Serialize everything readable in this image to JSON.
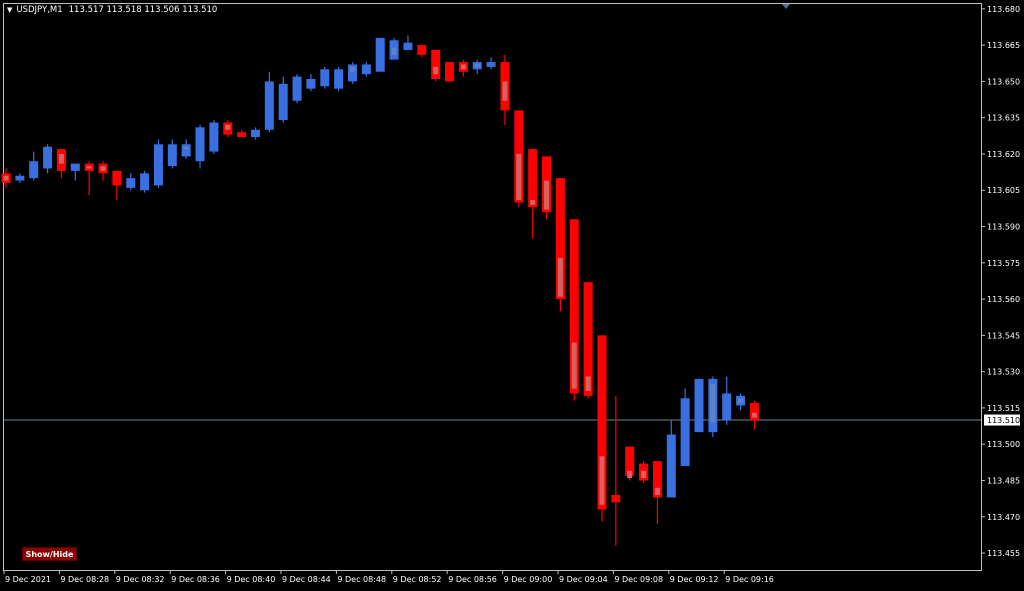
{
  "header": {
    "symbol": "USDJPY,M1",
    "ohlc": "113.517 113.518 113.506 113.510"
  },
  "buttons": {
    "show_hide": "Show/Hide"
  },
  "colors": {
    "background": "#000000",
    "bull": "#3a6fe0",
    "bear": "#ff0000",
    "bull_inner": "#5a84c8",
    "bear_inner": "#d86060",
    "axis": "#c0c0c0",
    "price_line": "#708090",
    "text": "#ffffff"
  },
  "chart_data": {
    "type": "candlestick",
    "ylim": [
      113.448,
      113.682
    ],
    "y_ticks": [
      "113.680",
      "113.665",
      "113.650",
      "113.635",
      "113.620",
      "113.605",
      "113.590",
      "113.575",
      "113.560",
      "113.545",
      "113.530",
      "113.515",
      "113.500",
      "113.485",
      "113.470",
      "113.455"
    ],
    "x_ticks": [
      "9 Dec 2021",
      "9 Dec 08:28",
      "9 Dec 08:32",
      "9 Dec 08:36",
      "9 Dec 08:40",
      "9 Dec 08:44",
      "9 Dec 08:48",
      "9 Dec 08:52",
      "9 Dec 08:56",
      "9 Dec 09:00",
      "9 Dec 09:04",
      "9 Dec 09:08",
      "9 Dec 09:12",
      "9 Dec 09:16"
    ],
    "current_price": "113.510",
    "candles": [
      {
        "o": 113.612,
        "h": 113.614,
        "l": 113.606,
        "c": 113.608,
        "io": 113.611,
        "ic": 113.609
      },
      {
        "o": 113.609,
        "h": 113.612,
        "l": 113.608,
        "c": 113.611
      },
      {
        "o": 113.61,
        "h": 113.621,
        "l": 113.609,
        "c": 113.617
      },
      {
        "o": 113.614,
        "h": 113.624,
        "l": 113.612,
        "c": 113.623
      },
      {
        "o": 113.622,
        "h": 113.622,
        "l": 113.61,
        "c": 113.613,
        "io": 113.62,
        "ic": 113.616
      },
      {
        "o": 113.613,
        "h": 113.616,
        "l": 113.609,
        "c": 113.616
      },
      {
        "o": 113.616,
        "h": 113.617,
        "l": 113.603,
        "c": 113.613,
        "io": 113.615,
        "ic": 113.614
      },
      {
        "o": 113.616,
        "h": 113.617,
        "l": 113.609,
        "c": 113.612,
        "io": 113.615,
        "ic": 113.613
      },
      {
        "o": 113.613,
        "h": 113.613,
        "l": 113.601,
        "c": 113.607
      },
      {
        "o": 113.606,
        "h": 113.612,
        "l": 113.605,
        "c": 113.61
      },
      {
        "o": 113.605,
        "h": 113.613,
        "l": 113.604,
        "c": 113.612
      },
      {
        "o": 113.607,
        "h": 113.626,
        "l": 113.606,
        "c": 113.624
      },
      {
        "o": 113.615,
        "h": 113.626,
        "l": 113.614,
        "c": 113.624
      },
      {
        "o": 113.619,
        "h": 113.626,
        "l": 113.618,
        "c": 113.624,
        "io": 113.622,
        "ic": 113.623
      },
      {
        "o": 113.617,
        "h": 113.632,
        "l": 113.614,
        "c": 113.631
      },
      {
        "o": 113.621,
        "h": 113.634,
        "l": 113.62,
        "c": 113.633
      },
      {
        "o": 113.633,
        "h": 113.634,
        "l": 113.627,
        "c": 113.628,
        "io": 113.632,
        "ic": 113.63
      },
      {
        "o": 113.629,
        "h": 113.63,
        "l": 113.627,
        "c": 113.627
      },
      {
        "o": 113.627,
        "h": 113.631,
        "l": 113.626,
        "c": 113.63
      },
      {
        "o": 113.63,
        "h": 113.654,
        "l": 113.629,
        "c": 113.65
      },
      {
        "o": 113.634,
        "h": 113.652,
        "l": 113.633,
        "c": 113.649
      },
      {
        "o": 113.642,
        "h": 113.653,
        "l": 113.641,
        "c": 113.652
      },
      {
        "o": 113.647,
        "h": 113.653,
        "l": 113.646,
        "c": 113.651
      },
      {
        "o": 113.648,
        "h": 113.656,
        "l": 113.647,
        "c": 113.655
      },
      {
        "o": 113.647,
        "h": 113.656,
        "l": 113.646,
        "c": 113.655
      },
      {
        "o": 113.65,
        "h": 113.658,
        "l": 113.649,
        "c": 113.657,
        "io": 113.654,
        "ic": 113.656
      },
      {
        "o": 113.653,
        "h": 113.658,
        "l": 113.652,
        "c": 113.657
      },
      {
        "o": 113.654,
        "h": 113.668,
        "l": 113.654,
        "c": 113.668
      },
      {
        "o": 113.659,
        "h": 113.668,
        "l": 113.659,
        "c": 113.667,
        "io": 113.661,
        "ic": 113.664
      },
      {
        "o": 113.663,
        "h": 113.669,
        "l": 113.663,
        "c": 113.666
      },
      {
        "o": 113.665,
        "h": 113.665,
        "l": 113.66,
        "c": 113.661
      },
      {
        "o": 113.663,
        "h": 113.663,
        "l": 113.65,
        "c": 113.651,
        "io": 113.656,
        "ic": 113.653
      },
      {
        "o": 113.658,
        "h": 113.658,
        "l": 113.65,
        "c": 113.65
      },
      {
        "o": 113.658,
        "h": 113.659,
        "l": 113.652,
        "c": 113.654,
        "io": 113.657,
        "ic": 113.655
      },
      {
        "o": 113.655,
        "h": 113.659,
        "l": 113.653,
        "c": 113.658,
        "io": 113.656,
        "ic": 113.657
      },
      {
        "o": 113.656,
        "h": 113.66,
        "l": 113.655,
        "c": 113.658
      },
      {
        "o": 113.658,
        "h": 113.661,
        "l": 113.632,
        "c": 113.638,
        "io": 113.65,
        "ic": 113.642
      },
      {
        "o": 113.638,
        "h": 113.638,
        "l": 113.598,
        "c": 113.6,
        "io": 113.62,
        "ic": 113.601
      },
      {
        "o": 113.622,
        "h": 113.622,
        "l": 113.585,
        "c": 113.598,
        "io": 113.601,
        "ic": 113.599
      },
      {
        "o": 113.619,
        "h": 113.619,
        "l": 113.593,
        "c": 113.596,
        "io": 113.609,
        "ic": 113.597
      },
      {
        "o": 113.61,
        "h": 113.61,
        "l": 113.555,
        "c": 113.56,
        "io": 113.577,
        "ic": 113.561
      },
      {
        "o": 113.593,
        "h": 113.593,
        "l": 113.518,
        "c": 113.521,
        "io": 113.542,
        "ic": 113.523
      },
      {
        "o": 113.567,
        "h": 113.567,
        "l": 113.519,
        "c": 113.52,
        "io": 113.528,
        "ic": 113.522
      },
      {
        "o": 113.545,
        "h": 113.545,
        "l": 113.468,
        "c": 113.473,
        "io": 113.495,
        "ic": 113.475
      },
      {
        "o": 113.479,
        "h": 113.52,
        "l": 113.458,
        "c": 113.476
      },
      {
        "o": 113.499,
        "h": 113.499,
        "l": 113.485,
        "c": 113.487,
        "io": 113.489,
        "ic": 113.486
      },
      {
        "o": 113.492,
        "h": 113.493,
        "l": 113.484,
        "c": 113.485,
        "io": 113.489,
        "ic": 113.486
      },
      {
        "o": 113.493,
        "h": 113.493,
        "l": 113.467,
        "c": 113.478,
        "io": 113.482,
        "ic": 113.479
      },
      {
        "o": 113.478,
        "h": 113.51,
        "l": 113.478,
        "c": 113.504
      },
      {
        "o": 113.491,
        "h": 113.523,
        "l": 113.491,
        "c": 113.519
      },
      {
        "o": 113.505,
        "h": 113.527,
        "l": 113.505,
        "c": 113.527
      },
      {
        "o": 113.505,
        "h": 113.528,
        "l": 113.503,
        "c": 113.527,
        "io": 113.525,
        "ic": 113.509
      },
      {
        "o": 113.51,
        "h": 113.528,
        "l": 113.508,
        "c": 113.521
      },
      {
        "o": 113.516,
        "h": 113.521,
        "l": 113.514,
        "c": 113.52,
        "io": 113.517,
        "ic": 113.519
      },
      {
        "o": 113.517,
        "h": 113.518,
        "l": 113.506,
        "c": 113.51,
        "io": 113.513,
        "ic": 113.511
      }
    ]
  }
}
